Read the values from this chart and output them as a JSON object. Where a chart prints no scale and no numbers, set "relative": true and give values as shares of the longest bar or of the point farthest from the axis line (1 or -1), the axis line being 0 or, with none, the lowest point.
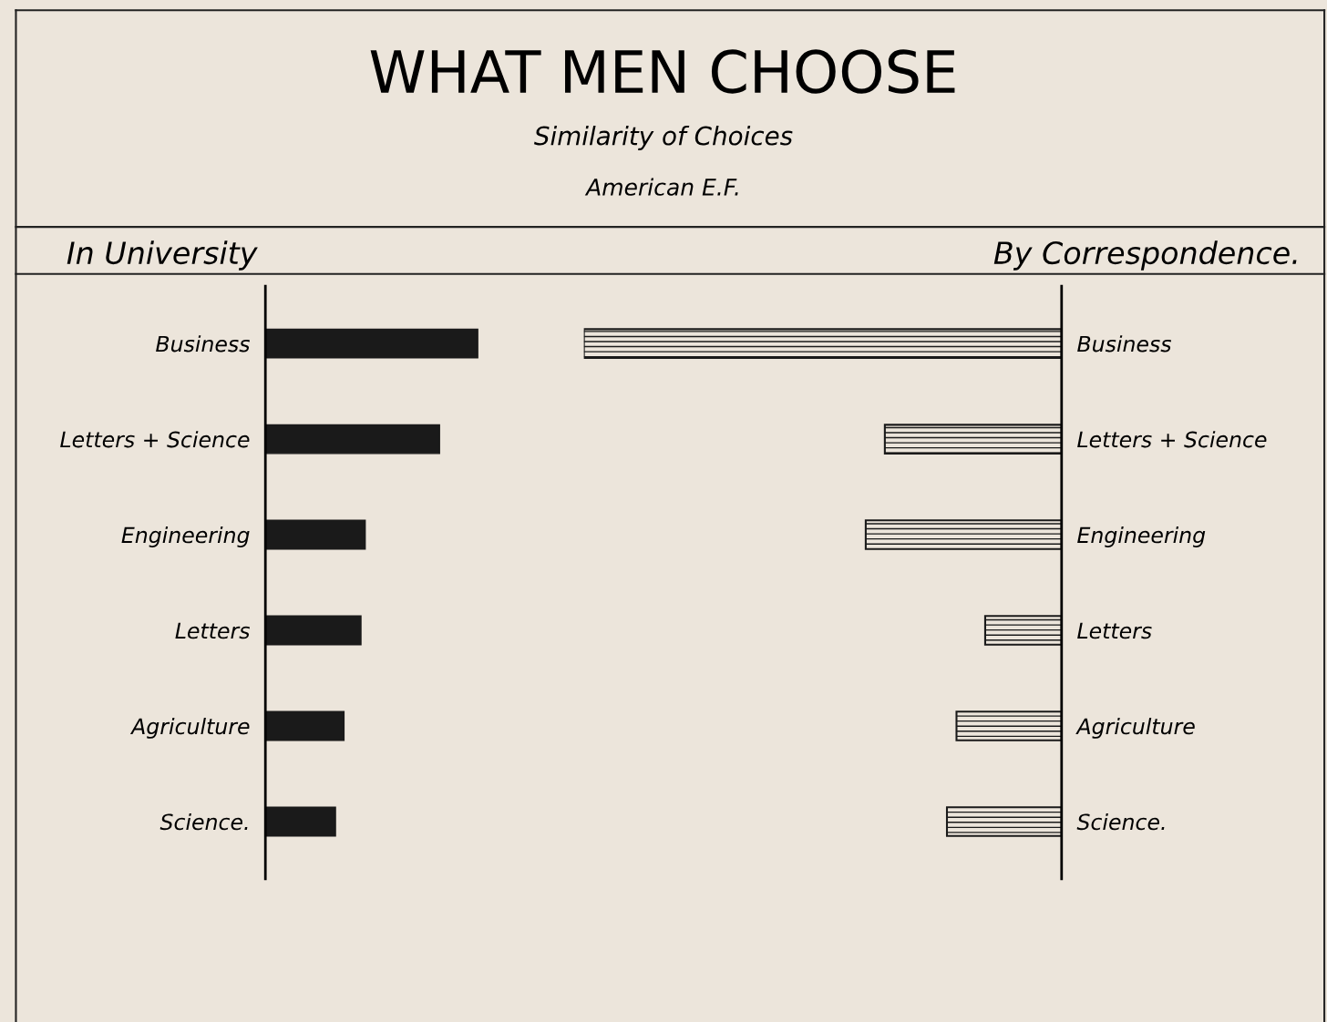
{
  "chart_data": [
    {
      "type": "bar",
      "orientation": "horizontal",
      "relative": true,
      "title": "In University",
      "annotations": [
        "WHAT MEN CHOOSE",
        "Similarity of Choices",
        "American E.F."
      ],
      "categories": [
        "Business",
        "Letters + Science",
        "Engineering",
        "Letters",
        "Agriculture",
        "Science."
      ],
      "series": [
        {
          "color": "#1a1a1a",
          "values": [
            1,
            0.82,
            0.47,
            0.45,
            0.37,
            0.33
          ]
        }
      ],
      "grid": false,
      "legend": false
    },
    {
      "type": "bar",
      "orientation": "horizontal",
      "relative": true,
      "title": "By Correspondence.",
      "categories": [
        "Business",
        "Letters + Science",
        "Engineering",
        "Letters",
        "Agriculture",
        "Science."
      ],
      "series": [
        {
          "color": "#1a1a1a",
          "values": [
            1,
            0.37,
            0.41,
            0.16,
            0.22,
            0.24
          ]
        }
      ],
      "grid": false,
      "legend": false
    }
  ]
}
